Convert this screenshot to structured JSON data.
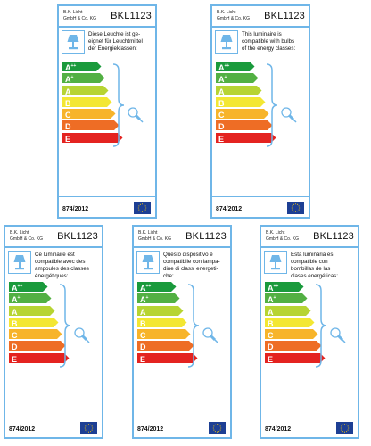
{
  "labels": [
    {
      "company": [
        "B.K. Licht",
        "GmbH & Co. KG"
      ],
      "code": "BKL1123",
      "text": [
        "Diese Leuchte ist ge-",
        "eignet für Leuchtmittel",
        "der Energieklassen:"
      ],
      "regulation": "874/2012"
    },
    {
      "company": [
        "B.K. Licht",
        "GmbH & Co. KG"
      ],
      "code": "BKL1123",
      "text": [
        "This luminaire is",
        "compatible with bulbs",
        "of the energy classes:"
      ],
      "regulation": "874/2012"
    },
    {
      "company": [
        "B.K. Licht",
        "GmbH & Co. KG"
      ],
      "code": "BKL1123",
      "text": [
        "Ce luminaire est",
        "compatible avec des",
        "ampoules des classes",
        "énergétiques:"
      ],
      "regulation": "874/2012"
    },
    {
      "company": [
        "B.K. Licht",
        "GmbH & Co. KG"
      ],
      "code": "BKL1123",
      "text": [
        "Questo dispositivo è",
        "compatibile con lampa-",
        "dine di classi energeti-",
        "che:"
      ],
      "regulation": "874/2012"
    },
    {
      "company": [
        "B.K. Licht",
        "GmbH & Co. KG"
      ],
      "code": "BKL1123",
      "text": [
        "Esta luminaria es",
        "compatible con",
        "bombillas de las",
        "clases energéticas:"
      ],
      "regulation": "874/2012"
    }
  ],
  "energy_classes": [
    {
      "letter": "A",
      "sup": "++",
      "color": "#1a9a3c"
    },
    {
      "letter": "A",
      "sup": "+",
      "color": "#52b043"
    },
    {
      "letter": "A",
      "sup": "",
      "color": "#b7d433"
    },
    {
      "letter": "B",
      "sup": "",
      "color": "#f3e733"
    },
    {
      "letter": "C",
      "sup": "",
      "color": "#f7b42a"
    },
    {
      "letter": "D",
      "sup": "",
      "color": "#ee6d25"
    },
    {
      "letter": "E",
      "sup": "",
      "color": "#e42320"
    }
  ],
  "colors": {
    "border": "#6fb6e8",
    "eu_flag": "#1d3f94",
    "eu_stars": "#ffcc00"
  }
}
